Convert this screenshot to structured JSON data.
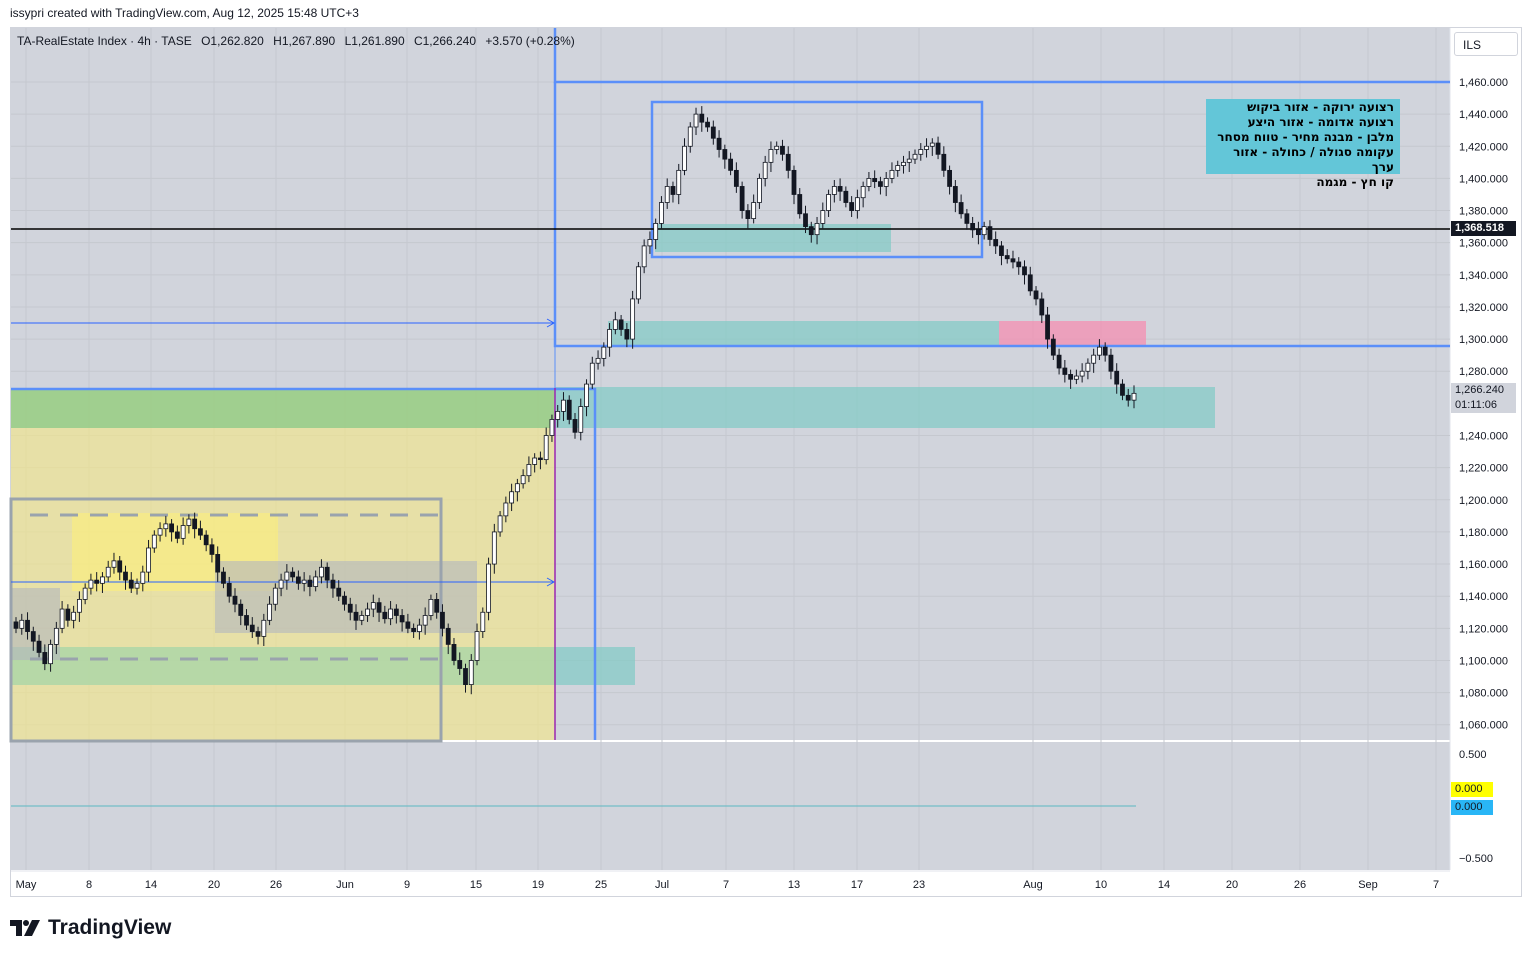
{
  "header": {
    "created_line": "issypri created with TradingView.com, Aug 12, 2025 15:48 UTC+3"
  },
  "symbol": {
    "name": "TA-RealEstate Index · 4h · TASE",
    "open": "O1,262.820",
    "high": "H1,267.890",
    "low": "L1,261.890",
    "close": "C1,266.240",
    "change": "+3.570 (+0.28%)"
  },
  "currency_button": "ILS",
  "legend_box": {
    "lines": [
      "רצועה ירוקה - אזור ביקוש",
      "רצועה אדומה - אזור היצע",
      "מלבן - מבנה מחיר - טווח מסחר",
      "עקומה סגולה / כחולה - אזור ערך",
      "קו חץ - מגמה"
    ]
  },
  "price_axis": {
    "ticks": [
      "1,460.000",
      "1,440.000",
      "1,420.000",
      "1,400.000",
      "1,380.000",
      "1,360.000",
      "1,340.000",
      "1,320.000",
      "1,300.000",
      "1,280.000",
      "1,240.000",
      "1,220.000",
      "1,200.000",
      "1,180.000",
      "1,160.000",
      "1,140.000",
      "1,120.000",
      "1,100.000",
      "1,080.000",
      "1,060.000"
    ],
    "horizontal_line_label": "1,368.518",
    "last_price_label": "1,266.240",
    "countdown_label": "01:11:06"
  },
  "indicator_axis": {
    "ticks": [
      "0.500",
      "−0.500"
    ],
    "yellow_label": "0.000",
    "blue_label": "0.000"
  },
  "time_axis": {
    "labels": [
      "May",
      "8",
      "14",
      "20",
      "26",
      "Jun",
      "9",
      "15",
      "19",
      "25",
      "Jul",
      "7",
      "13",
      "17",
      "23",
      "Aug",
      "10",
      "14",
      "20",
      "26",
      "Sep",
      "7"
    ]
  },
  "brand": {
    "name": "TradingView"
  },
  "colors": {
    "background": "#d1d4dc",
    "up_candle": "#ffffff",
    "down_candle": "#131722",
    "demand_zone": "#81c784",
    "supply_zone": "#f48fb1",
    "range_box": "#5b8ff9",
    "value_zone": "#fff59d",
    "legend_box": "#63c6d8",
    "last_price": "#b2b5be"
  },
  "chart_data": {
    "type": "candlestick",
    "timeframe": "4h",
    "price_range": [
      1040,
      1470
    ],
    "indicator_range": [
      -0.6,
      0.6
    ],
    "x_labels": [
      "May",
      "8",
      "14",
      "20",
      "26",
      "Jun",
      "9",
      "15",
      "19",
      "25",
      "Jul",
      "7",
      "13",
      "17",
      "23",
      "Aug",
      "10",
      "14",
      "20",
      "26",
      "Sep",
      "7"
    ],
    "horizontal_line": 1368.518,
    "last_price": 1266.24,
    "closes": [
      1120,
      1125,
      1118,
      1112,
      1105,
      1098,
      1110,
      1120,
      1132,
      1125,
      1130,
      1138,
      1145,
      1150,
      1148,
      1152,
      1158,
      1162,
      1155,
      1150,
      1145,
      1148,
      1155,
      1170,
      1178,
      1182,
      1185,
      1180,
      1176,
      1184,
      1188,
      1182,
      1178,
      1172,
      1166,
      1155,
      1148,
      1140,
      1135,
      1128,
      1122,
      1118,
      1115,
      1125,
      1135,
      1145,
      1150,
      1155,
      1152,
      1148,
      1150,
      1146,
      1152,
      1158,
      1150,
      1145,
      1140,
      1135,
      1130,
      1125,
      1128,
      1132,
      1136,
      1130,
      1126,
      1132,
      1128,
      1124,
      1120,
      1118,
      1122,
      1128,
      1138,
      1130,
      1120,
      1110,
      1100,
      1095,
      1085,
      1100,
      1118,
      1130,
      1160,
      1180,
      1190,
      1198,
      1205,
      1210,
      1215,
      1222,
      1226,
      1225,
      1240,
      1250,
      1255,
      1262,
      1250,
      1242,
      1258,
      1272,
      1285,
      1288,
      1295,
      1306,
      1312,
      1306,
      1300,
      1325,
      1345,
      1358,
      1362,
      1372,
      1385,
      1395,
      1390,
      1405,
      1420,
      1432,
      1440,
      1435,
      1432,
      1425,
      1418,
      1412,
      1405,
      1395,
      1380,
      1375,
      1385,
      1400,
      1410,
      1418,
      1420,
      1415,
      1405,
      1390,
      1378,
      1370,
      1365,
      1372,
      1380,
      1390,
      1395,
      1392,
      1385,
      1380,
      1388,
      1395,
      1400,
      1398,
      1395,
      1400,
      1405,
      1408,
      1410,
      1412,
      1415,
      1418,
      1420,
      1422,
      1415,
      1405,
      1395,
      1385,
      1378,
      1372,
      1368,
      1365,
      1370,
      1362,
      1358,
      1352,
      1350,
      1348,
      1345,
      1340,
      1330,
      1325,
      1315,
      1300,
      1290,
      1282,
      1278,
      1275,
      1277,
      1280,
      1285,
      1290,
      1295,
      1290,
      1280,
      1272,
      1265,
      1262,
      1266.24
    ]
  }
}
